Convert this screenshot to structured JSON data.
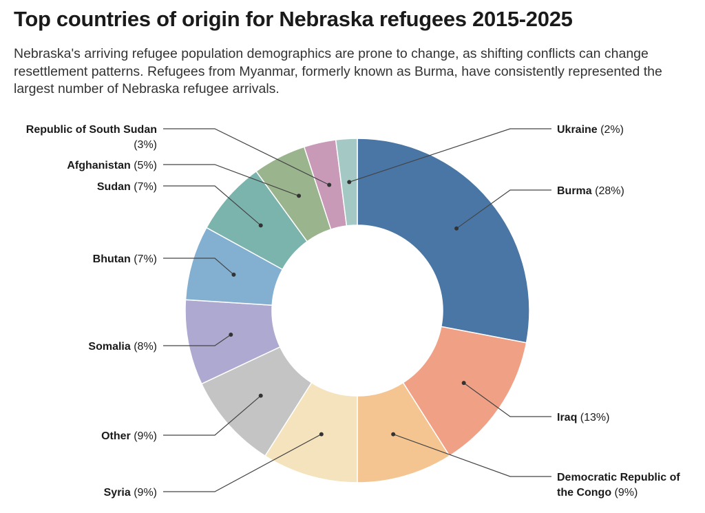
{
  "title": "Top countries of origin for Nebraska refugees 2015-2025",
  "subtitle": "Nebraska's arriving refugee population demographics are prone to change, as shifting conflicts can change resettlement patterns. Refugees from Myanmar, formerly known as Burma, have consistently represented the largest number of Nebraska refugee arrivals.",
  "chart_data": {
    "type": "pie",
    "donut": true,
    "title": "Top countries of origin for Nebraska refugees 2015-2025",
    "categories": [
      "Burma",
      "Iraq",
      "Democratic Republic of the Congo",
      "Syria",
      "Other",
      "Somalia",
      "Bhutan",
      "Sudan",
      "Afghanistan",
      "Republic of South Sudan",
      "Ukraine"
    ],
    "values": [
      28,
      13,
      9,
      9,
      9,
      8,
      7,
      7,
      5,
      3,
      2
    ],
    "pct_labels": [
      "(28%)",
      "(13%)",
      "(9%)",
      "(9%)",
      "(9%)",
      "(8%)",
      "(7%)",
      "(7%)",
      "(5%)",
      "(3%)",
      "(2%)"
    ],
    "colors": [
      "#4a76a5",
      "#f0a085",
      "#f5c591",
      "#f4e3bd",
      "#c4c4c4",
      "#ada9d0",
      "#83b0d1",
      "#7ab4ad",
      "#9ab48d",
      "#c89ab8",
      "#a4c8c4"
    ]
  }
}
